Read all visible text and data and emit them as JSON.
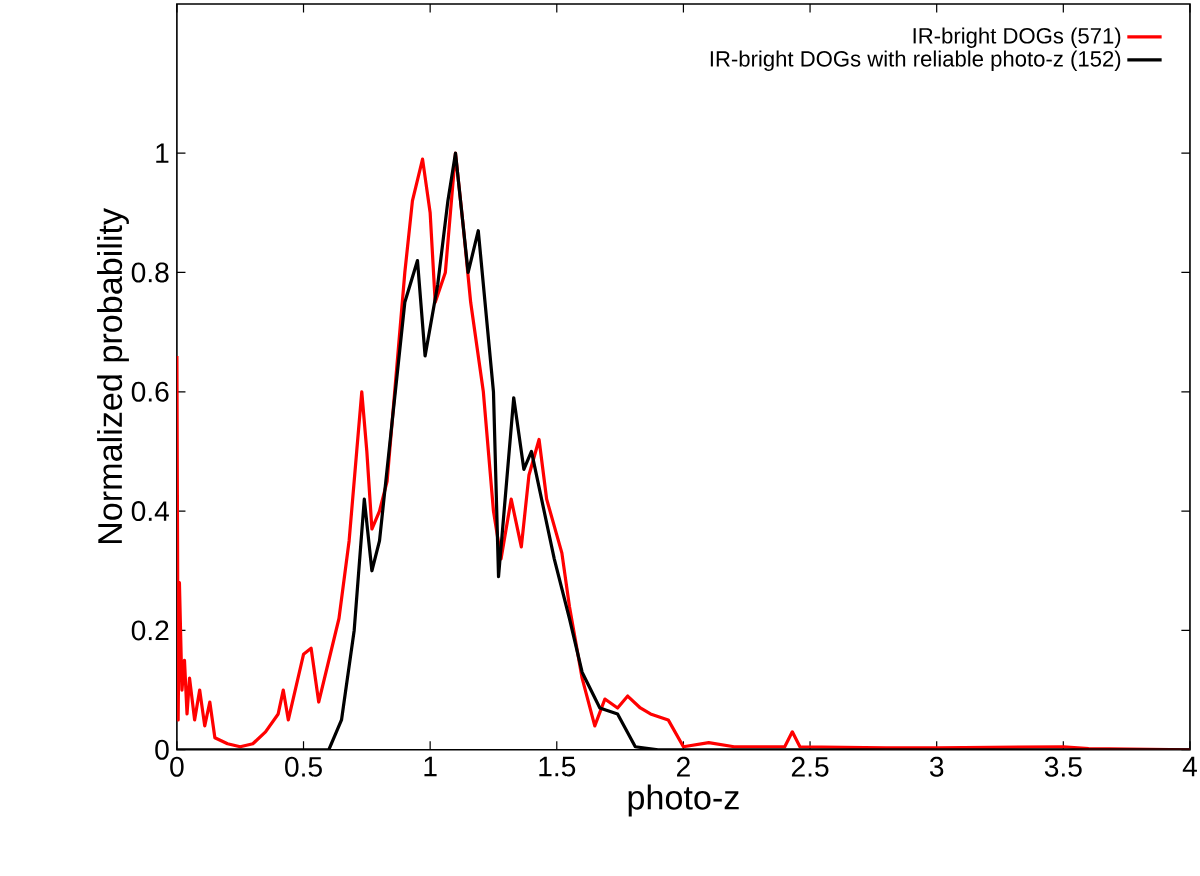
{
  "chart_data": {
    "type": "line",
    "xlabel": "photo-z",
    "ylabel": "Normalized probability",
    "xlim": [
      0,
      4
    ],
    "ylim": [
      0,
      1.25
    ],
    "xticks": [
      0,
      0.5,
      1,
      1.5,
      2,
      2.5,
      3,
      3.5,
      4
    ],
    "yticks": [
      0,
      0.2,
      0.4,
      0.6,
      0.8,
      1
    ],
    "grid": false,
    "legend": "top right",
    "marker": "none",
    "line_style": "solid",
    "series": [
      {
        "name": "IR-bright DOGs (571)",
        "color": "#ff0000",
        "x": [
          0,
          0.005,
          0.01,
          0.02,
          0.03,
          0.04,
          0.05,
          0.07,
          0.09,
          0.11,
          0.13,
          0.15,
          0.2,
          0.25,
          0.3,
          0.35,
          0.4,
          0.42,
          0.44,
          0.5,
          0.53,
          0.56,
          0.6,
          0.64,
          0.68,
          0.71,
          0.73,
          0.75,
          0.77,
          0.8,
          0.83,
          0.86,
          0.9,
          0.93,
          0.97,
          1.0,
          1.02,
          1.06,
          1.1,
          1.13,
          1.16,
          1.21,
          1.25,
          1.28,
          1.32,
          1.36,
          1.39,
          1.43,
          1.46,
          1.52,
          1.55,
          1.6,
          1.65,
          1.69,
          1.74,
          1.78,
          1.83,
          1.87,
          1.94,
          2.0,
          2.1,
          2.2,
          2.4,
          2.43,
          2.46,
          2.8,
          3.0,
          3.5,
          3.6,
          4.0
        ],
        "values": [
          0.66,
          0.05,
          0.28,
          0.1,
          0.15,
          0.06,
          0.12,
          0.05,
          0.1,
          0.04,
          0.08,
          0.02,
          0.01,
          0.005,
          0.01,
          0.03,
          0.06,
          0.1,
          0.05,
          0.16,
          0.17,
          0.08,
          0.15,
          0.22,
          0.35,
          0.5,
          0.6,
          0.5,
          0.37,
          0.4,
          0.45,
          0.6,
          0.8,
          0.92,
          0.99,
          0.9,
          0.75,
          0.8,
          1.0,
          0.88,
          0.75,
          0.6,
          0.4,
          0.32,
          0.42,
          0.34,
          0.46,
          0.52,
          0.42,
          0.33,
          0.24,
          0.12,
          0.04,
          0.085,
          0.07,
          0.09,
          0.07,
          0.06,
          0.05,
          0.005,
          0.012,
          0.005,
          0.005,
          0.03,
          0.005,
          0.003,
          0.003,
          0.005,
          0.002,
          0
        ]
      },
      {
        "name": "IR-bright DOGs with reliable photo-z (152)",
        "color": "#000000",
        "x": [
          0,
          0.6,
          0.65,
          0.7,
          0.74,
          0.77,
          0.8,
          0.85,
          0.9,
          0.95,
          0.98,
          1.03,
          1.07,
          1.1,
          1.15,
          1.19,
          1.25,
          1.27,
          1.33,
          1.37,
          1.4,
          1.44,
          1.49,
          1.55,
          1.6,
          1.67,
          1.74,
          1.81,
          1.9,
          4.0
        ],
        "values": [
          0,
          0,
          0.05,
          0.2,
          0.42,
          0.3,
          0.35,
          0.55,
          0.75,
          0.82,
          0.66,
          0.78,
          0.92,
          1.0,
          0.8,
          0.87,
          0.6,
          0.29,
          0.59,
          0.47,
          0.5,
          0.42,
          0.32,
          0.22,
          0.13,
          0.07,
          0.06,
          0.005,
          0,
          0
        ]
      }
    ]
  }
}
